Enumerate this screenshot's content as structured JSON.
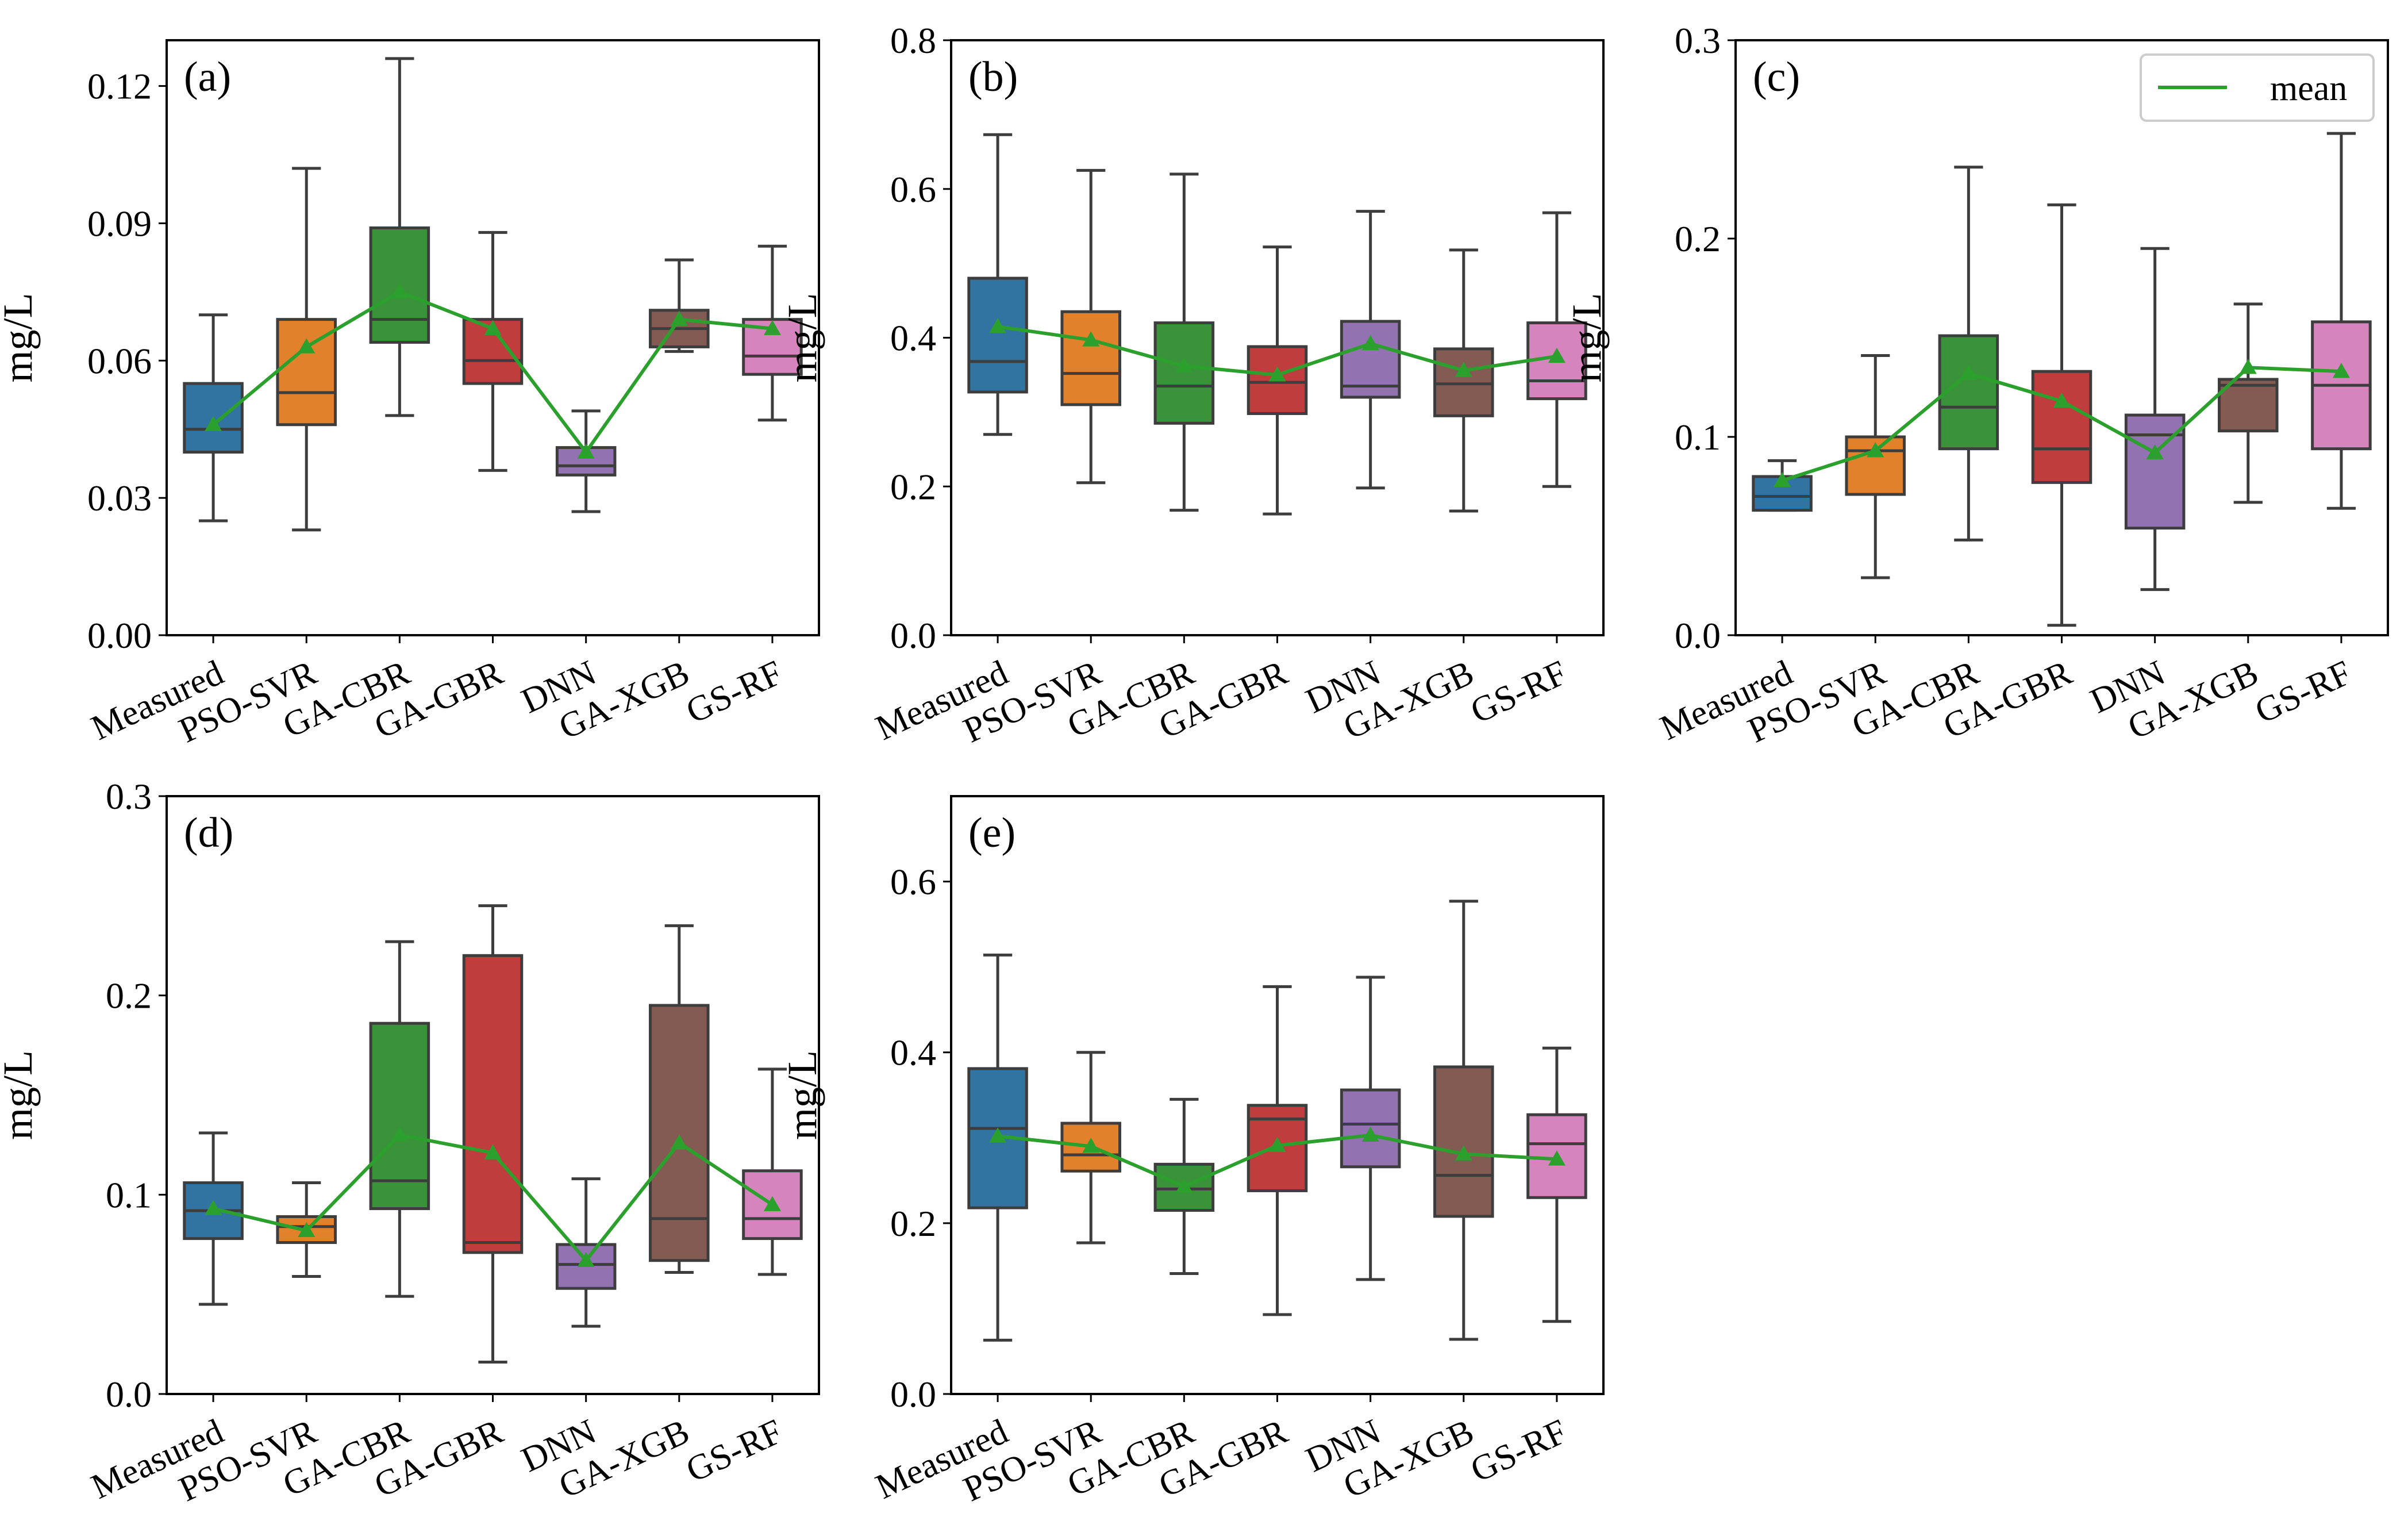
{
  "chart_data": [
    {
      "type": "box",
      "panel": "(a)",
      "ylabel": "mg/L",
      "ylim": [
        0,
        0.13
      ],
      "yticks": [
        0,
        0.03,
        0.06,
        0.09,
        0.12
      ],
      "ytick_labels": [
        "0.00",
        "0.03",
        "0.06",
        "0.09",
        "0.12"
      ],
      "categories": [
        "Measured",
        "PSO-SVR",
        "GA-CBR",
        "GA-GBR",
        "DNN",
        "GA-XGB",
        "GS-RF"
      ],
      "boxes": [
        {
          "whisker_low": 0.025,
          "q1": 0.04,
          "median": 0.045,
          "q3": 0.055,
          "whisker_high": 0.07
        },
        {
          "whisker_low": 0.023,
          "q1": 0.046,
          "median": 0.053,
          "q3": 0.069,
          "whisker_high": 0.102
        },
        {
          "whisker_low": 0.048,
          "q1": 0.064,
          "median": 0.069,
          "q3": 0.089,
          "whisker_high": 0.126
        },
        {
          "whisker_low": 0.036,
          "q1": 0.055,
          "median": 0.06,
          "q3": 0.069,
          "whisker_high": 0.088
        },
        {
          "whisker_low": 0.027,
          "q1": 0.035,
          "median": 0.037,
          "q3": 0.041,
          "whisker_high": 0.049
        },
        {
          "whisker_low": 0.062,
          "q1": 0.063,
          "median": 0.067,
          "q3": 0.071,
          "whisker_high": 0.082
        },
        {
          "whisker_low": 0.047,
          "q1": 0.057,
          "median": 0.061,
          "q3": 0.069,
          "whisker_high": 0.085
        }
      ],
      "mean": [
        0.046,
        0.063,
        0.075,
        0.067,
        0.04,
        0.069,
        0.067
      ]
    },
    {
      "type": "box",
      "panel": "(b)",
      "ylabel": "mg/L",
      "ylim": [
        0,
        0.8
      ],
      "yticks": [
        0,
        0.2,
        0.4,
        0.6,
        0.8
      ],
      "ytick_labels": [
        "0.0",
        "0.2",
        "0.4",
        "0.6",
        "0.8"
      ],
      "categories": [
        "Measured",
        "PSO-SVR",
        "GA-CBR",
        "GA-GBR",
        "DNN",
        "GA-XGB",
        "GS-RF"
      ],
      "boxes": [
        {
          "whisker_low": 0.27,
          "q1": 0.327,
          "median": 0.368,
          "q3": 0.48,
          "whisker_high": 0.673
        },
        {
          "whisker_low": 0.205,
          "q1": 0.31,
          "median": 0.352,
          "q3": 0.435,
          "whisker_high": 0.625
        },
        {
          "whisker_low": 0.168,
          "q1": 0.285,
          "median": 0.335,
          "q3": 0.42,
          "whisker_high": 0.62
        },
        {
          "whisker_low": 0.163,
          "q1": 0.298,
          "median": 0.34,
          "q3": 0.388,
          "whisker_high": 0.522
        },
        {
          "whisker_low": 0.198,
          "q1": 0.32,
          "median": 0.335,
          "q3": 0.422,
          "whisker_high": 0.57
        },
        {
          "whisker_low": 0.167,
          "q1": 0.295,
          "median": 0.338,
          "q3": 0.385,
          "whisker_high": 0.518
        },
        {
          "whisker_low": 0.2,
          "q1": 0.318,
          "median": 0.342,
          "q3": 0.42,
          "whisker_high": 0.568
        }
      ],
      "mean": [
        0.415,
        0.397,
        0.362,
        0.35,
        0.392,
        0.356,
        0.375
      ]
    },
    {
      "type": "box",
      "panel": "(c)",
      "ylabel": "mg/L",
      "ylim": [
        0,
        0.3
      ],
      "yticks": [
        0,
        0.1,
        0.2,
        0.3
      ],
      "ytick_labels": [
        "0.0",
        "0.1",
        "0.2",
        "0.3"
      ],
      "categories": [
        "Measured",
        "PSO-SVR",
        "GA-CBR",
        "GA-GBR",
        "DNN",
        "GA-XGB",
        "GS-RF"
      ],
      "boxes": [
        {
          "whisker_low": 0.063,
          "q1": 0.063,
          "median": 0.07,
          "q3": 0.08,
          "whisker_high": 0.088
        },
        {
          "whisker_low": 0.029,
          "q1": 0.071,
          "median": 0.093,
          "q3": 0.1,
          "whisker_high": 0.141
        },
        {
          "whisker_low": 0.048,
          "q1": 0.094,
          "median": 0.115,
          "q3": 0.151,
          "whisker_high": 0.236
        },
        {
          "whisker_low": 0.005,
          "q1": 0.077,
          "median": 0.094,
          "q3": 0.133,
          "whisker_high": 0.217
        },
        {
          "whisker_low": 0.023,
          "q1": 0.054,
          "median": 0.101,
          "q3": 0.111,
          "whisker_high": 0.195
        },
        {
          "whisker_low": 0.067,
          "q1": 0.103,
          "median": 0.126,
          "q3": 0.129,
          "whisker_high": 0.167
        },
        {
          "whisker_low": 0.064,
          "q1": 0.094,
          "median": 0.126,
          "q3": 0.158,
          "whisker_high": 0.253
        }
      ],
      "mean": [
        0.078,
        0.093,
        0.132,
        0.118,
        0.092,
        0.135,
        0.133
      ],
      "legend": {
        "label": "mean",
        "position": "top-right"
      }
    },
    {
      "type": "box",
      "panel": "(d)",
      "ylabel": "mg/L",
      "ylim": [
        0,
        0.3
      ],
      "yticks": [
        0,
        0.1,
        0.2,
        0.3
      ],
      "ytick_labels": [
        "0.0",
        "0.1",
        "0.2",
        "0.3"
      ],
      "categories": [
        "Measured",
        "PSO-SVR",
        "GA-CBR",
        "GA-GBR",
        "DNN",
        "GA-XGB",
        "GS-RF"
      ],
      "boxes": [
        {
          "whisker_low": 0.045,
          "q1": 0.078,
          "median": 0.092,
          "q3": 0.106,
          "whisker_high": 0.131
        },
        {
          "whisker_low": 0.059,
          "q1": 0.076,
          "median": 0.084,
          "q3": 0.089,
          "whisker_high": 0.106
        },
        {
          "whisker_low": 0.049,
          "q1": 0.093,
          "median": 0.107,
          "q3": 0.186,
          "whisker_high": 0.227
        },
        {
          "whisker_low": 0.016,
          "q1": 0.071,
          "median": 0.076,
          "q3": 0.22,
          "whisker_high": 0.245
        },
        {
          "whisker_low": 0.034,
          "q1": 0.053,
          "median": 0.065,
          "q3": 0.075,
          "whisker_high": 0.108
        },
        {
          "whisker_low": 0.061,
          "q1": 0.067,
          "median": 0.088,
          "q3": 0.195,
          "whisker_high": 0.235
        },
        {
          "whisker_low": 0.06,
          "q1": 0.078,
          "median": 0.088,
          "q3": 0.112,
          "whisker_high": 0.163
        }
      ],
      "mean": [
        0.093,
        0.082,
        0.13,
        0.121,
        0.067,
        0.126,
        0.095
      ]
    },
    {
      "type": "box",
      "panel": "(e)",
      "ylabel": "mg/L",
      "ylim": [
        0,
        0.7
      ],
      "yticks": [
        0,
        0.2,
        0.4,
        0.6
      ],
      "ytick_labels": [
        "0.0",
        "0.2",
        "0.4",
        "0.6"
      ],
      "categories": [
        "Measured",
        "PSO-SVR",
        "GA-CBR",
        "GA-GBR",
        "DNN",
        "GA-XGB",
        "GS-RF"
      ],
      "boxes": [
        {
          "whisker_low": 0.063,
          "q1": 0.218,
          "median": 0.311,
          "q3": 0.381,
          "whisker_high": 0.514
        },
        {
          "whisker_low": 0.177,
          "q1": 0.261,
          "median": 0.28,
          "q3": 0.317,
          "whisker_high": 0.4
        },
        {
          "whisker_low": 0.141,
          "q1": 0.215,
          "median": 0.24,
          "q3": 0.269,
          "whisker_high": 0.345
        },
        {
          "whisker_low": 0.093,
          "q1": 0.238,
          "median": 0.322,
          "q3": 0.338,
          "whisker_high": 0.477
        },
        {
          "whisker_low": 0.134,
          "q1": 0.266,
          "median": 0.316,
          "q3": 0.356,
          "whisker_high": 0.488
        },
        {
          "whisker_low": 0.064,
          "q1": 0.208,
          "median": 0.256,
          "q3": 0.383,
          "whisker_high": 0.577
        },
        {
          "whisker_low": 0.085,
          "q1": 0.23,
          "median": 0.293,
          "q3": 0.327,
          "whisker_high": 0.405
        }
      ],
      "mean": [
        0.302,
        0.29,
        0.243,
        0.291,
        0.303,
        0.281,
        0.275
      ]
    }
  ],
  "colors": {
    "boxes": [
      "#3274a1",
      "#e1812c",
      "#3a923a",
      "#c03d3e",
      "#9372b2",
      "#845b53",
      "#d684bd"
    ],
    "mean_line": "#2ca02c",
    "box_edge": "#3d3d3d",
    "axes": "#000000"
  }
}
